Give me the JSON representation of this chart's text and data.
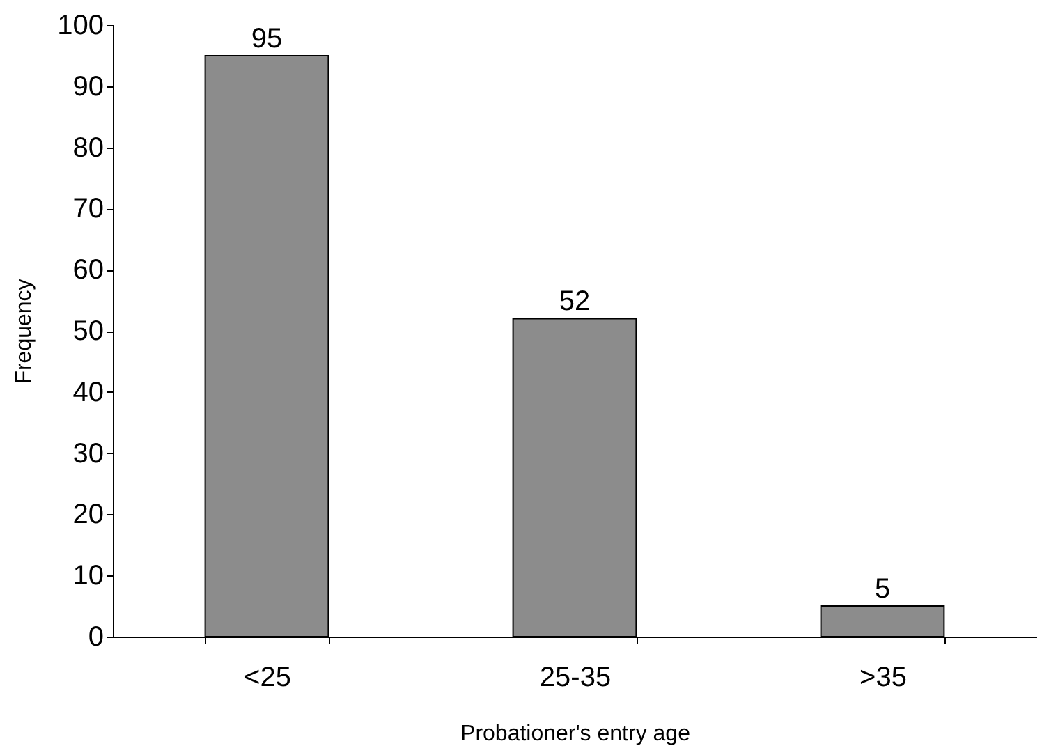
{
  "chart_data": {
    "type": "bar",
    "xlabel": "Probationer's entry age",
    "ylabel": "Frequency",
    "categories": [
      "<25",
      "25-35",
      ">35"
    ],
    "values": [
      95,
      52,
      5
    ],
    "color": "#8c8c8c",
    "ylim": [
      0,
      100
    ],
    "yticks": [
      0,
      10,
      20,
      30,
      40,
      50,
      60,
      70,
      80,
      90,
      100
    ],
    "data_labels": true
  }
}
